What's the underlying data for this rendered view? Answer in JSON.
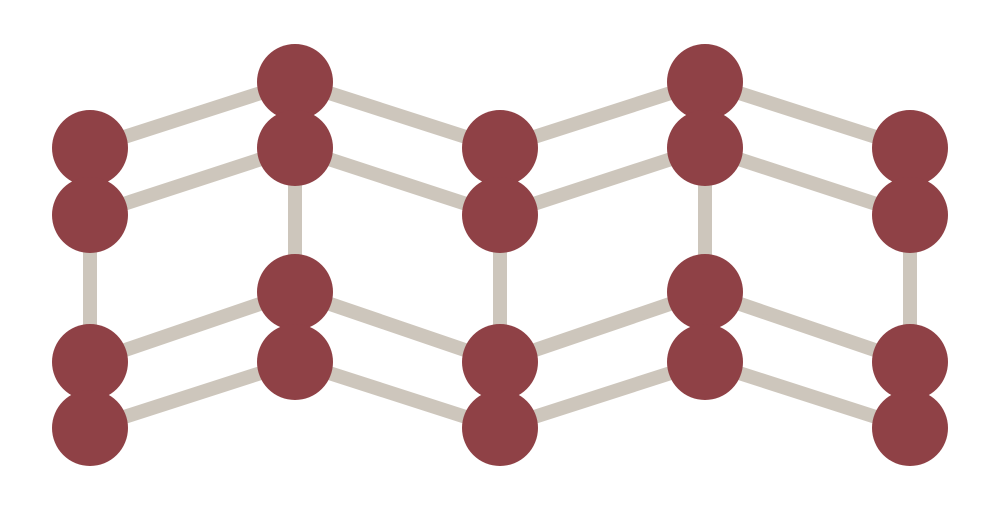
{
  "diagram": {
    "kind": "atomic lattice ball-and-stick model",
    "atom_color": "#8f4146",
    "bond_color": "#cdc6bc",
    "background_color": "#ffffff",
    "atom_count": 20,
    "bond_count": 25
  }
}
